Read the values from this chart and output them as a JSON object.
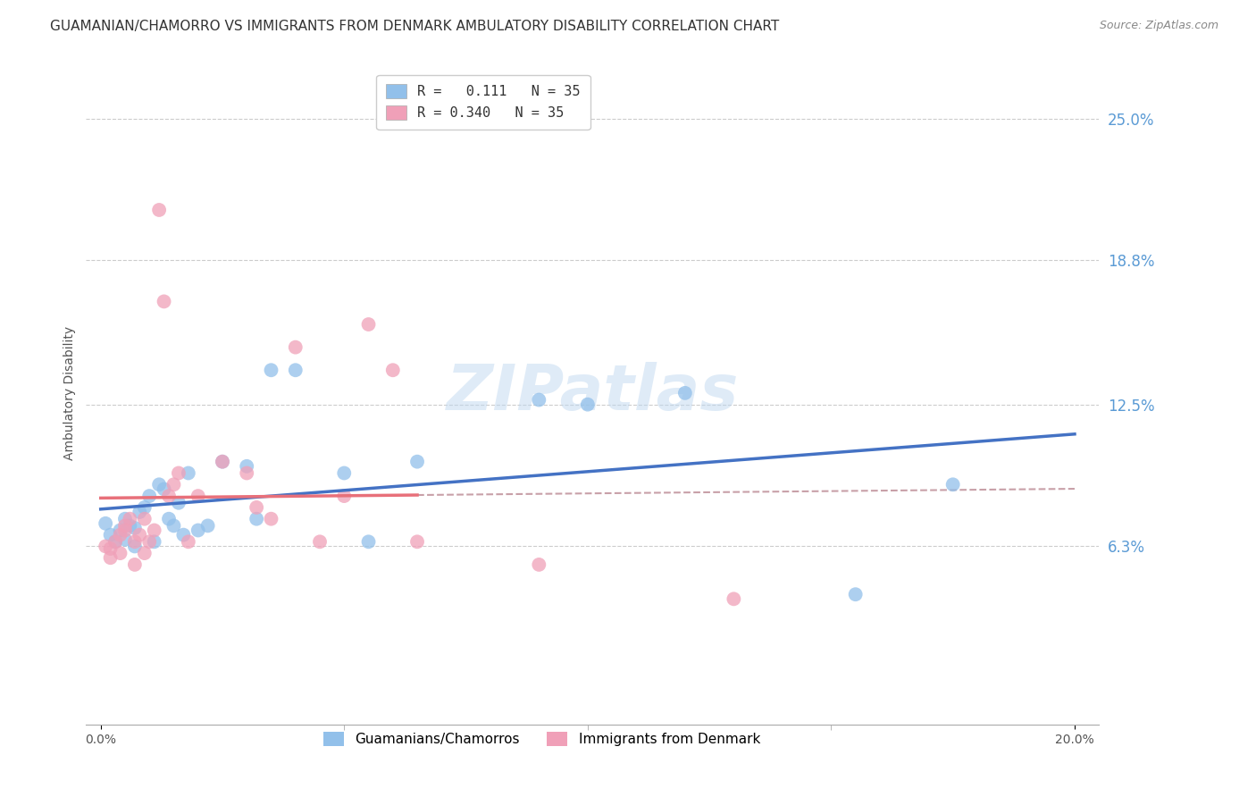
{
  "title": "GUAMANIAN/CHAMORRO VS IMMIGRANTS FROM DENMARK AMBULATORY DISABILITY CORRELATION CHART",
  "source": "Source: ZipAtlas.com",
  "ylabel": "Ambulatory Disability",
  "ytick_labels": [
    "25.0%",
    "18.8%",
    "12.5%",
    "6.3%"
  ],
  "ytick_values": [
    0.25,
    0.188,
    0.125,
    0.063
  ],
  "xlim": [
    0.0,
    0.2
  ],
  "ylim": [
    0.0,
    0.27
  ],
  "blue_line_color": "#4472C4",
  "pink_line_color": "#E8707A",
  "pink_dashed_color": "#C8A0A8",
  "dot_blue_color": "#92C0EA",
  "dot_pink_color": "#F0A0B8",
  "watermark_color": "#C0D8F0",
  "grid_color": "#CCCCCC",
  "right_axis_label_color": "#5B9BD5",
  "title_fontsize": 11,
  "axis_label_fontsize": 10,
  "guamanian_x": [
    0.001,
    0.002,
    0.003,
    0.004,
    0.005,
    0.005,
    0.006,
    0.007,
    0.007,
    0.008,
    0.009,
    0.01,
    0.011,
    0.012,
    0.013,
    0.014,
    0.015,
    0.016,
    0.017,
    0.018,
    0.02,
    0.022,
    0.025,
    0.03,
    0.032,
    0.035,
    0.04,
    0.05,
    0.055,
    0.065,
    0.09,
    0.1,
    0.12,
    0.155,
    0.175
  ],
  "guamanian_y": [
    0.073,
    0.068,
    0.065,
    0.07,
    0.075,
    0.066,
    0.072,
    0.063,
    0.071,
    0.078,
    0.08,
    0.085,
    0.065,
    0.09,
    0.088,
    0.075,
    0.072,
    0.082,
    0.068,
    0.095,
    0.07,
    0.072,
    0.1,
    0.098,
    0.075,
    0.14,
    0.14,
    0.095,
    0.065,
    0.1,
    0.127,
    0.125,
    0.13,
    0.042,
    0.09
  ],
  "denmark_x": [
    0.001,
    0.002,
    0.002,
    0.003,
    0.004,
    0.004,
    0.005,
    0.005,
    0.006,
    0.007,
    0.007,
    0.008,
    0.009,
    0.009,
    0.01,
    0.011,
    0.012,
    0.013,
    0.014,
    0.015,
    0.016,
    0.018,
    0.02,
    0.025,
    0.03,
    0.032,
    0.035,
    0.04,
    0.045,
    0.05,
    0.055,
    0.06,
    0.065,
    0.09,
    0.13
  ],
  "denmark_y": [
    0.063,
    0.058,
    0.062,
    0.065,
    0.068,
    0.06,
    0.07,
    0.072,
    0.075,
    0.055,
    0.065,
    0.068,
    0.075,
    0.06,
    0.065,
    0.07,
    0.21,
    0.17,
    0.085,
    0.09,
    0.095,
    0.065,
    0.085,
    0.1,
    0.095,
    0.08,
    0.075,
    0.15,
    0.065,
    0.085,
    0.16,
    0.14,
    0.065,
    0.055,
    0.04
  ]
}
